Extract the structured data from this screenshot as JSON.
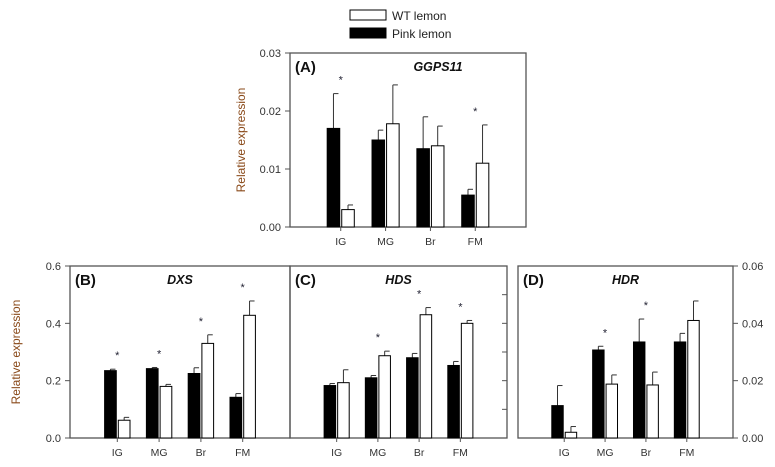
{
  "chart_data": [
    {
      "type": "bar",
      "panel": "(A)",
      "gene": "GGPS11",
      "ylabel": "Relative expression",
      "ylim": [
        0,
        0.03
      ],
      "yticks": [
        "0.00",
        "0.01",
        "0.02",
        "0.03"
      ],
      "yaxis": "left",
      "categories": [
        "IG",
        "MG",
        "Br",
        "FM"
      ],
      "series": [
        {
          "name": "Pink lemon",
          "values": [
            0.017,
            0.015,
            0.0135,
            0.0055
          ],
          "errors": [
            0.006,
            0.0017,
            0.0055,
            0.001
          ]
        },
        {
          "name": "WT lemon",
          "values": [
            0.003,
            0.0178,
            0.014,
            0.011
          ],
          "errors": [
            0.0008,
            0.0067,
            0.0034,
            0.0066
          ]
        }
      ],
      "significant": [
        true,
        false,
        false,
        true
      ]
    },
    {
      "type": "bar",
      "panel": "(B)",
      "gene": "DXS",
      "ylabel": "Relative expression",
      "ylim": [
        0,
        0.6
      ],
      "yticks": [
        "0.0",
        "0.2",
        "0.4",
        "0.6"
      ],
      "yaxis": "left",
      "categories": [
        "IG",
        "MG",
        "Br",
        "FM"
      ],
      "series": [
        {
          "name": "Pink lemon",
          "values": [
            0.235,
            0.242,
            0.225,
            0.142
          ],
          "errors": [
            0.005,
            0.004,
            0.02,
            0.013
          ]
        },
        {
          "name": "WT lemon",
          "values": [
            0.062,
            0.18,
            0.33,
            0.428
          ],
          "errors": [
            0.01,
            0.007,
            0.03,
            0.05
          ]
        }
      ],
      "significant": [
        true,
        true,
        true,
        true
      ]
    },
    {
      "type": "bar",
      "panel": "(C)",
      "gene": "HDS",
      "ylabel": "",
      "ylim": [
        0,
        0.6
      ],
      "yticks": [],
      "yaxis": "none",
      "categories": [
        "IG",
        "MG",
        "Br",
        "FM"
      ],
      "series": [
        {
          "name": "Pink lemon",
          "values": [
            0.183,
            0.21,
            0.28,
            0.253
          ],
          "errors": [
            0.007,
            0.008,
            0.015,
            0.014
          ]
        },
        {
          "name": "WT lemon",
          "values": [
            0.193,
            0.287,
            0.43,
            0.4
          ],
          "errors": [
            0.045,
            0.016,
            0.025,
            0.01
          ]
        }
      ],
      "significant": [
        false,
        true,
        true,
        true
      ]
    },
    {
      "type": "bar",
      "panel": "(D)",
      "gene": "HDR",
      "ylabel": "",
      "ylim": [
        0,
        0.06
      ],
      "yticks": [
        "0.00",
        "0.02",
        "0.04",
        "0.06"
      ],
      "yaxis": "right",
      "categories": [
        "IG",
        "MG",
        "Br",
        "FM"
      ],
      "series": [
        {
          "name": "Pink lemon",
          "values": [
            0.0113,
            0.0307,
            0.0335,
            0.0335
          ],
          "errors": [
            0.007,
            0.0013,
            0.008,
            0.003
          ]
        },
        {
          "name": "WT lemon",
          "values": [
            0.002,
            0.0188,
            0.0185,
            0.041
          ],
          "errors": [
            0.002,
            0.0032,
            0.0045,
            0.0068
          ]
        }
      ],
      "significant": [
        false,
        true,
        true,
        false
      ]
    }
  ],
  "legend": [
    {
      "name": "WT lemon",
      "color": "#ffffff"
    },
    {
      "name": "Pink lemon",
      "color": "#000000"
    }
  ],
  "significance_marker": "*"
}
